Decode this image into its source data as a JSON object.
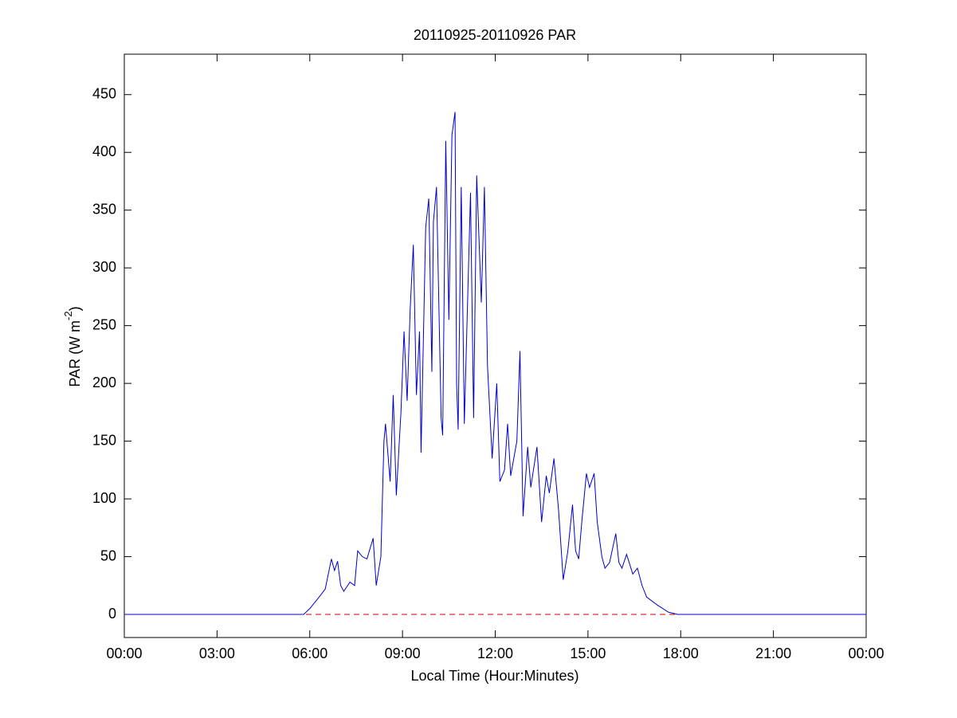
{
  "chart_data": {
    "type": "line",
    "title": "20110925-20110926 PAR",
    "xlabel": "Local Time (Hour:Minutes)",
    "ylabel": {
      "text": "PAR (W m",
      "superscript": "-2",
      "suffix": ")"
    },
    "xlim": [
      0,
      24
    ],
    "ylim": [
      -20,
      485
    ],
    "xticks": [
      {
        "value": 0,
        "label": "00:00"
      },
      {
        "value": 3,
        "label": "03:00"
      },
      {
        "value": 6,
        "label": "06:00"
      },
      {
        "value": 9,
        "label": "09:00"
      },
      {
        "value": 12,
        "label": "12:00"
      },
      {
        "value": 15,
        "label": "15:00"
      },
      {
        "value": 18,
        "label": "18:00"
      },
      {
        "value": 21,
        "label": "21:00"
      },
      {
        "value": 24,
        "label": "00:00"
      }
    ],
    "yticks": [
      0,
      50,
      100,
      150,
      200,
      250,
      300,
      350,
      400,
      450
    ],
    "reference_line": {
      "value": 0,
      "color": "#c00000",
      "dashed": true
    },
    "series": [
      {
        "color": "#0000cc",
        "x": [
          0,
          5.8,
          6.0,
          6.3,
          6.5,
          6.7,
          6.8,
          6.9,
          7.0,
          7.1,
          7.3,
          7.45,
          7.55,
          7.7,
          7.85,
          8.05,
          8.15,
          8.3,
          8.4,
          8.45,
          8.6,
          8.7,
          8.8,
          8.95,
          9.05,
          9.15,
          9.25,
          9.35,
          9.45,
          9.55,
          9.6,
          9.75,
          9.85,
          9.95,
          10.0,
          10.1,
          10.25,
          10.3,
          10.4,
          10.5,
          10.6,
          10.7,
          10.75,
          10.8,
          10.9,
          11.0,
          11.2,
          11.3,
          11.4,
          11.55,
          11.65,
          11.75,
          11.9,
          12.05,
          12.15,
          12.3,
          12.4,
          12.5,
          12.7,
          12.8,
          12.9,
          13.05,
          13.15,
          13.35,
          13.5,
          13.65,
          13.75,
          13.9,
          14.05,
          14.2,
          14.35,
          14.5,
          14.6,
          14.7,
          14.8,
          14.95,
          15.05,
          15.2,
          15.3,
          15.45,
          15.55,
          15.7,
          15.9,
          16.0,
          16.1,
          16.25,
          16.45,
          16.6,
          16.75,
          16.9,
          17.25,
          17.6,
          17.9,
          24
        ],
        "values": [
          0,
          0,
          5,
          15,
          22,
          48,
          38,
          46,
          25,
          20,
          28,
          25,
          55,
          50,
          48,
          66,
          25,
          50,
          150,
          165,
          115,
          190,
          103,
          175,
          245,
          185,
          265,
          320,
          190,
          245,
          140,
          335,
          360,
          210,
          340,
          370,
          170,
          155,
          410,
          255,
          415,
          435,
          200,
          160,
          370,
          165,
          365,
          170,
          380,
          270,
          370,
          215,
          135,
          200,
          115,
          125,
          165,
          120,
          150,
          228,
          85,
          145,
          110,
          145,
          80,
          120,
          105,
          135,
          90,
          30,
          55,
          95,
          55,
          48,
          80,
          122,
          110,
          122,
          80,
          50,
          40,
          45,
          70,
          45,
          40,
          52,
          35,
          40,
          25,
          15,
          8,
          2,
          0,
          0
        ]
      }
    ]
  }
}
